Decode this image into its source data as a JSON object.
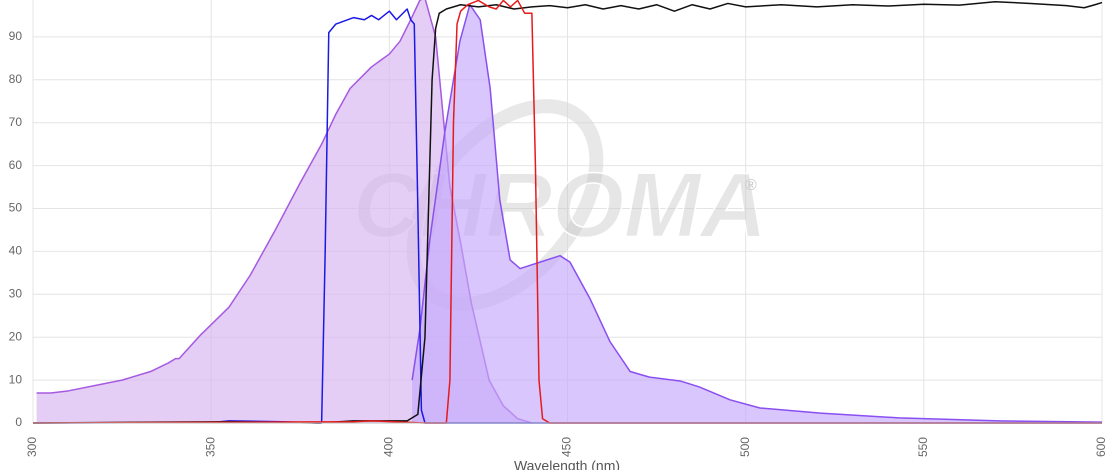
{
  "chart_data": {
    "type": "area",
    "x_label": "Wavelength (nm)",
    "watermark": "CHROMA",
    "watermark_mark": "®",
    "xlim": [
      300,
      600
    ],
    "ylim": [
      0,
      100
    ],
    "xticks": [
      300,
      350,
      400,
      450,
      500,
      550,
      600
    ],
    "yticks": [
      0,
      10,
      20,
      30,
      40,
      50,
      60,
      70,
      80,
      90
    ],
    "grid": true,
    "series": [
      {
        "color": "#a65ae0",
        "fill": "#d7b4f0",
        "x": [
          301,
          305,
          310,
          319,
          325,
          333,
          338,
          340,
          341,
          347,
          355,
          361,
          368,
          375,
          381,
          385,
          389,
          395,
          400,
          403,
          406,
          408.6,
          410,
          413,
          417,
          420,
          423,
          428,
          432,
          436,
          440
        ],
        "values": [
          7,
          7,
          7.5,
          9,
          10,
          12,
          14,
          15,
          15,
          20.5,
          27,
          34.5,
          45,
          56,
          65,
          72,
          78,
          83,
          86,
          89,
          94,
          98.6,
          99,
          90,
          55,
          42,
          28,
          10,
          4,
          1,
          0
        ]
      },
      {
        "color": "#8a4ff0",
        "fill": "#c3a8fb",
        "x": [
          406.4,
          408.6,
          411.4,
          415.6,
          419.8,
          422.6,
          425.5,
          428.3,
          431,
          433.9,
          436.7,
          442.3,
          447.9,
          450.7,
          456.3,
          461.9,
          467.6,
          473,
          481.6,
          487,
          495.6,
          504,
          521,
          543,
          571,
          600
        ],
        "values": [
          10,
          22,
          43,
          68,
          89,
          97.5,
          94,
          78,
          52,
          38,
          36,
          37.5,
          39,
          37.5,
          29,
          19,
          12,
          10.7,
          9.8,
          8.4,
          5.4,
          3.5,
          2.3,
          1.2,
          0.5,
          0.2
        ]
      },
      {
        "color": "#1a1ae6",
        "x": [
          300,
          350,
          355,
          370,
          380,
          381,
          382,
          383,
          385,
          390,
          393,
          395,
          397,
          400,
          402,
          405,
          406,
          407,
          408,
          409,
          410,
          600
        ],
        "values": [
          0,
          0.1,
          0.5,
          0.3,
          0,
          0,
          40,
          91,
          93,
          94.5,
          94,
          95,
          94,
          96,
          94,
          96.5,
          94,
          93,
          50,
          3,
          0,
          0
        ]
      },
      {
        "color": "#111111",
        "x": [
          300,
          355,
          380,
          390,
          400,
          405,
          408,
          410,
          411,
          412,
          413,
          414,
          416,
          420,
          425,
          430,
          435,
          440,
          445,
          450,
          455,
          460,
          465,
          470,
          475,
          480,
          485,
          490,
          495,
          500,
          510,
          520,
          530,
          540,
          550,
          560,
          570,
          580,
          590,
          595,
          598,
          600
        ],
        "values": [
          0,
          0.3,
          0,
          0.5,
          0.5,
          0.5,
          2,
          20,
          50,
          80,
          92,
          95.5,
          96.5,
          97.5,
          97,
          97.5,
          96.5,
          97,
          97.3,
          96.8,
          97.5,
          96.5,
          97.3,
          96.5,
          97.5,
          96,
          97.5,
          96.5,
          97.8,
          97,
          97.5,
          97,
          97.5,
          97.2,
          97.6,
          97.4,
          98.2,
          97.8,
          97.3,
          96.8,
          97.5,
          98
        ]
      },
      {
        "color": "#e61a1a",
        "x": [
          300,
          390,
          395,
          410,
          416,
          417,
          418,
          419,
          420,
          422,
          425,
          428,
          430,
          432,
          434,
          436,
          438,
          440,
          441,
          442,
          443,
          445,
          600
        ],
        "values": [
          0,
          0.3,
          0.5,
          0,
          0,
          10,
          70,
          93,
          96,
          97.5,
          98.5,
          97,
          96.5,
          98.5,
          97,
          98.5,
          95.5,
          95.5,
          60,
          10,
          1,
          0,
          0
        ]
      }
    ]
  }
}
